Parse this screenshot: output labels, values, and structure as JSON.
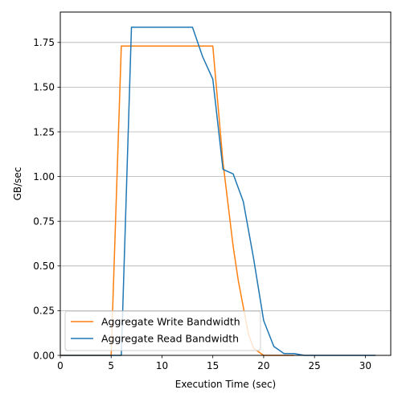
{
  "chart_data": {
    "type": "line",
    "title": "",
    "xlabel": "Execution Time (sec)",
    "ylabel": "GB/sec",
    "xlim": [
      0,
      32.5
    ],
    "ylim": [
      0,
      1.92
    ],
    "xticks": [
      0,
      5,
      10,
      15,
      20,
      25,
      30
    ],
    "yticks": [
      0.0,
      0.25,
      0.5,
      0.75,
      1.0,
      1.25,
      1.5,
      1.75
    ],
    "xtick_labels": [
      "0",
      "5",
      "10",
      "15",
      "20",
      "25",
      "30"
    ],
    "ytick_labels": [
      "0.00",
      "0.25",
      "0.50",
      "0.75",
      "1.00",
      "1.25",
      "1.50",
      "1.75"
    ],
    "grid": "horizontal",
    "legend_position": "lower-left",
    "series": [
      {
        "name": "Aggregate Write Bandwidth",
        "color": "#ff7f0e",
        "x": [
          0,
          5,
          6,
          7,
          8,
          9,
          10,
          11,
          12,
          13,
          14,
          15,
          16,
          17,
          17.5,
          18,
          18.5,
          19,
          20,
          21,
          22,
          23
        ],
        "y": [
          0,
          0,
          1.73,
          1.73,
          1.73,
          1.73,
          1.73,
          1.73,
          1.73,
          1.73,
          1.73,
          1.73,
          1.08,
          0.61,
          0.42,
          0.27,
          0.12,
          0.04,
          0.0,
          0.0,
          0.0,
          0.0
        ]
      },
      {
        "name": "Aggregate Read Bandwidth",
        "color": "#1f77b4",
        "x": [
          0,
          6,
          7,
          8,
          9,
          10,
          11,
          12,
          13,
          14,
          15,
          16,
          17,
          18,
          19,
          20,
          21,
          22,
          23,
          24,
          25,
          26,
          27,
          28,
          29,
          30,
          31
        ],
        "y": [
          0,
          0,
          1.835,
          1.835,
          1.835,
          1.835,
          1.835,
          1.835,
          1.835,
          1.67,
          1.545,
          1.04,
          1.015,
          0.86,
          0.545,
          0.195,
          0.05,
          0.01,
          0.01,
          0.0,
          0.0,
          0.0,
          0.0,
          0.0,
          0.0,
          0.0,
          0.0
        ]
      }
    ]
  }
}
